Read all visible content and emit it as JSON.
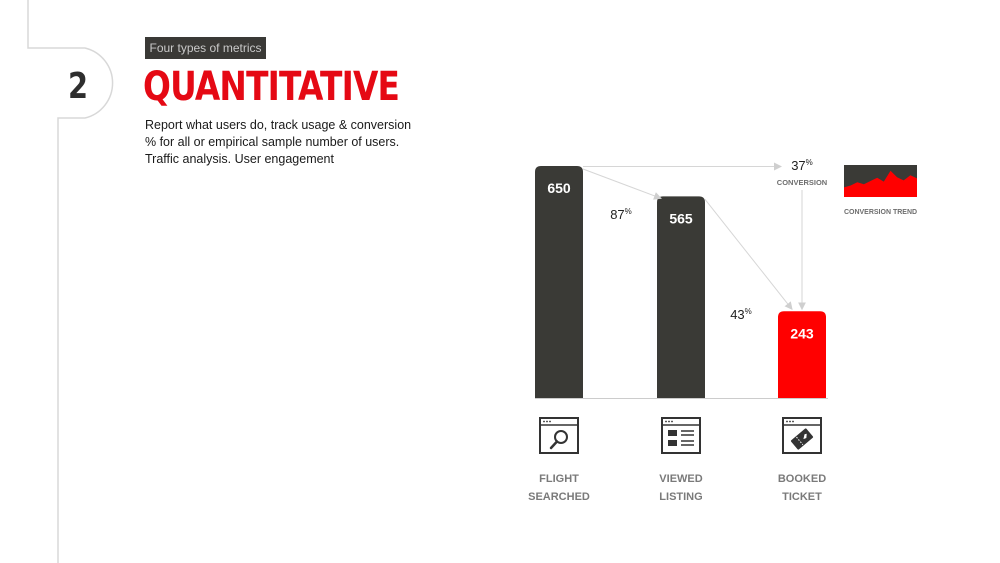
{
  "slide": {
    "tag": "Four types of metrics",
    "number": "2",
    "title": "QUANTITATIVE",
    "description": [
      "Report what users do, track usage & conversion",
      "% for all or empirical sample number of users.",
      "Traffic analysis. User engagement"
    ]
  },
  "chart_data": {
    "type": "bar",
    "categories": [
      "FLIGHT SEARCHED",
      "VIEWED LISTING",
      "BOOKED TICKET"
    ],
    "category_lines": [
      [
        "FLIGHT",
        "SEARCHED"
      ],
      [
        "VIEWED",
        "LISTING"
      ],
      [
        "BOOKED",
        "TICKET"
      ]
    ],
    "values": [
      650,
      565,
      243
    ],
    "bar_labels": [
      "650",
      "565",
      "243"
    ],
    "bar_colors": [
      "#3a3a36",
      "#3a3a36",
      "#ff0000"
    ],
    "icons": [
      "search-window-icon",
      "listing-window-icon",
      "ticket-window-icon"
    ],
    "step_rates": [
      {
        "value": "87",
        "unit": "%"
      },
      {
        "value": "43",
        "unit": "%"
      }
    ],
    "conversion": {
      "value": "37",
      "unit": "%",
      "label": "CONVERSION"
    },
    "trend_label": "CONVERSION TREND",
    "trend_values": [
      0.3,
      0.36,
      0.46,
      0.4,
      0.5,
      0.6,
      0.48,
      0.82,
      0.62,
      0.52,
      0.68,
      0.58
    ],
    "ylim": [
      0,
      650
    ],
    "accent": "#ff0000"
  }
}
